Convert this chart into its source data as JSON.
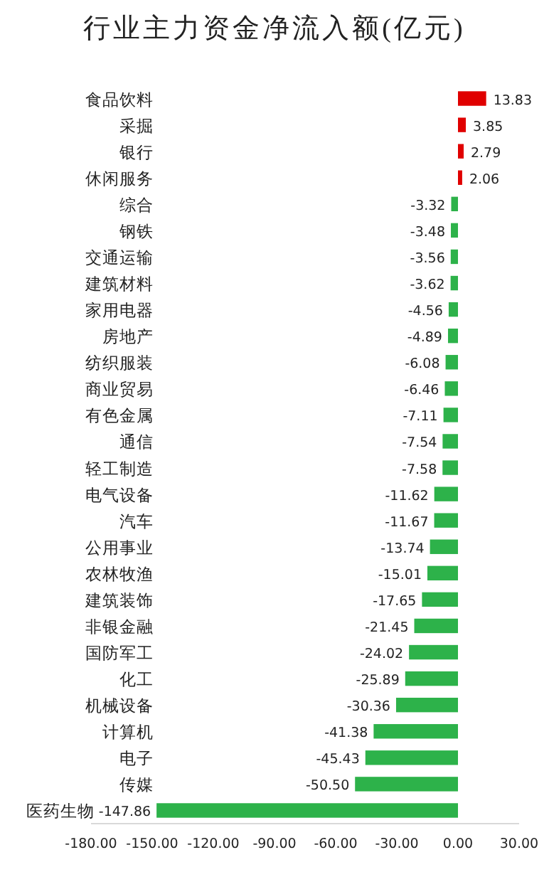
{
  "chart_data": {
    "type": "bar",
    "orientation": "horizontal",
    "title": "行业主力资金净流入额(亿元)",
    "categories": [
      "食品饮料",
      "采掘",
      "银行",
      "休闲服务",
      "综合",
      "钢铁",
      "交通运输",
      "建筑材料",
      "家用电器",
      "房地产",
      "纺织服装",
      "商业贸易",
      "有色金属",
      "通信",
      "轻工制造",
      "电气设备",
      "汽车",
      "公用事业",
      "农林牧渔",
      "建筑装饰",
      "非银金融",
      "国防军工",
      "化工",
      "机械设备",
      "计算机",
      "电子",
      "传媒",
      "医药生物"
    ],
    "values": [
      13.83,
      3.85,
      2.79,
      2.06,
      -3.32,
      -3.48,
      -3.56,
      -3.62,
      -4.56,
      -4.89,
      -6.08,
      -6.46,
      -7.11,
      -7.54,
      -7.58,
      -11.62,
      -11.67,
      -13.74,
      -15.01,
      -17.65,
      -21.45,
      -24.02,
      -25.89,
      -30.36,
      -41.38,
      -45.43,
      -50.5,
      -147.86
    ],
    "value_labels": [
      "13.83",
      "3.85",
      "2.79",
      "2.06",
      "-3.32",
      "-3.48",
      "-3.56",
      "-3.62",
      "-4.56",
      "-4.89",
      "-6.08",
      "-6.46",
      "-7.11",
      "-7.54",
      "-7.58",
      "-11.62",
      "-11.67",
      "-13.74",
      "-15.01",
      "-17.65",
      "-21.45",
      "-24.02",
      "-25.89",
      "-30.36",
      "-41.38",
      "-45.43",
      "-50.50",
      "-147.86"
    ],
    "colors": [
      "#e00000",
      "#e00000",
      "#e00000",
      "#e00000",
      "#2db24a",
      "#2db24a",
      "#2db24a",
      "#2db24a",
      "#2db24a",
      "#2db24a",
      "#2db24a",
      "#2db24a",
      "#2db24a",
      "#2db24a",
      "#2db24a",
      "#2db24a",
      "#2db24a",
      "#2db24a",
      "#2db24a",
      "#2db24a",
      "#2db24a",
      "#2db24a",
      "#2db24a",
      "#2db24a",
      "#2db24a",
      "#2db24a",
      "#2db24a",
      "#2db24a"
    ],
    "xlim": [
      -180,
      30
    ],
    "xticks": [
      {
        "value": -180,
        "label": "-180.00"
      },
      {
        "value": -150,
        "label": "-150.00"
      },
      {
        "value": -120,
        "label": "-120.00"
      },
      {
        "value": -90,
        "label": "-90.00"
      },
      {
        "value": -60,
        "label": "-60.00"
      },
      {
        "value": -30,
        "label": "-30.00"
      },
      {
        "value": 0,
        "label": "0.00"
      },
      {
        "value": 30,
        "label": "30.00"
      }
    ]
  }
}
